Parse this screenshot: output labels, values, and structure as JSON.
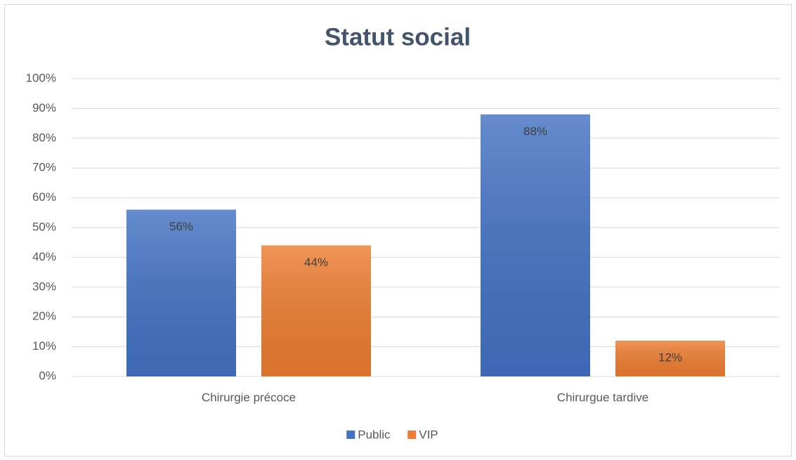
{
  "chart_data": {
    "type": "bar",
    "title": "Statut social",
    "categories": [
      "Chirurgie précoce",
      "Chirurgue tardive"
    ],
    "series": [
      {
        "name": "Public",
        "color": "#4472c4",
        "values": [
          56,
          88
        ],
        "value_labels": [
          "56%",
          "88%"
        ]
      },
      {
        "name": "VIP",
        "color": "#ed7d31",
        "values": [
          44,
          12
        ],
        "value_labels": [
          "44%",
          "12%"
        ]
      }
    ],
    "ylim": [
      0,
      100
    ],
    "yticks": [
      {
        "value": 0,
        "label": "0%"
      },
      {
        "value": 10,
        "label": "10%"
      },
      {
        "value": 20,
        "label": "20%"
      },
      {
        "value": 30,
        "label": "30%"
      },
      {
        "value": 40,
        "label": "40%"
      },
      {
        "value": 50,
        "label": "50%"
      },
      {
        "value": 60,
        "label": "60%"
      },
      {
        "value": 70,
        "label": "70%"
      },
      {
        "value": 80,
        "label": "80%"
      },
      {
        "value": 90,
        "label": "90%"
      },
      {
        "value": 100,
        "label": "100%"
      }
    ],
    "grid": true,
    "legend": "bottom"
  }
}
